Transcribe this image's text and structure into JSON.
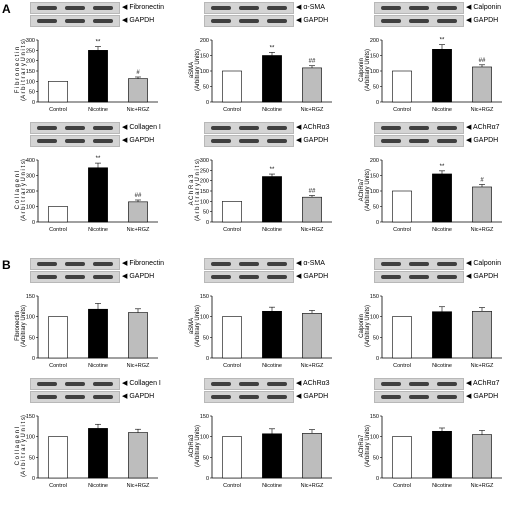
{
  "sections": [
    {
      "label": "A",
      "panels": [
        {
          "blots": [
            "Fibronectin",
            "GAPDH"
          ],
          "ylabel_lines": [
            "F i b r o n e c t i n",
            "(A r b i t r a r y  U n i t s)"
          ],
          "chart_data": {
            "type": "bar",
            "categories": [
              "Control",
              "Nicotine",
              "Nic+RGZ"
            ],
            "values": [
              100,
              250,
              113
            ],
            "errors": [
              0,
              18,
              8
            ],
            "annotations": [
              "",
              "**",
              "#"
            ],
            "ylim": [
              0,
              300
            ],
            "yticks": [
              0,
              50,
              100,
              150,
              200,
              250,
              300
            ]
          }
        },
        {
          "blots": [
            "α-SMA",
            "GAPDH"
          ],
          "ylabel_lines": [
            "aSMA",
            "(Arbitrary Units)"
          ],
          "chart_data": {
            "type": "bar",
            "categories": [
              "Control",
              "Nicotine",
              "Nic+RGZ"
            ],
            "values": [
              100,
              150,
              110
            ],
            "errors": [
              0,
              10,
              7
            ],
            "annotations": [
              "",
              "**",
              "##"
            ],
            "ylim": [
              0,
              200
            ],
            "yticks": [
              0,
              50,
              100,
              150,
              200
            ]
          }
        },
        {
          "blots": [
            "Calponin",
            "GAPDH"
          ],
          "ylabel_lines": [
            "Calponin",
            "(Arbitrary Units)"
          ],
          "chart_data": {
            "type": "bar",
            "categories": [
              "Control",
              "Nicotine",
              "Nic+RGZ"
            ],
            "values": [
              100,
              170,
              113
            ],
            "errors": [
              0,
              15,
              7
            ],
            "annotations": [
              "",
              "**",
              "##"
            ],
            "ylim": [
              0,
              200
            ],
            "yticks": [
              0,
              50,
              100,
              150,
              200
            ]
          }
        },
        {
          "blots": [
            "Collagen I",
            "GAPDH"
          ],
          "ylabel_lines": [
            "C o l l a g e n  I",
            "(A r b i t r a r y  U n i t s)"
          ],
          "chart_data": {
            "type": "bar",
            "categories": [
              "Control",
              "Nicotine",
              "Nic+RGZ"
            ],
            "values": [
              100,
              350,
              130
            ],
            "errors": [
              0,
              30,
              12
            ],
            "annotations": [
              "",
              "**",
              "##"
            ],
            "ylim": [
              0,
              400
            ],
            "yticks": [
              0,
              100,
              200,
              300,
              400
            ]
          }
        },
        {
          "blots": [
            "AChRα3",
            "GAPDH"
          ],
          "ylabel_lines": [
            "A C h R a 3",
            "(A r b i t r a r y  U n i t s)"
          ],
          "chart_data": {
            "type": "bar",
            "categories": [
              "Control",
              "Nicotine",
              "Nic+RGZ"
            ],
            "values": [
              100,
              220,
              120
            ],
            "errors": [
              0,
              12,
              8
            ],
            "annotations": [
              "",
              "**",
              "##"
            ],
            "ylim": [
              0,
              300
            ],
            "yticks": [
              0,
              50,
              100,
              150,
              200,
              250,
              300
            ]
          }
        },
        {
          "blots": [
            "AChRα7",
            "GAPDH"
          ],
          "ylabel_lines": [
            "AChRa7",
            "(Arbitrary Units)"
          ],
          "chart_data": {
            "type": "bar",
            "categories": [
              "Control",
              "Nicotine",
              "Nic+RGZ"
            ],
            "values": [
              100,
              155,
              113
            ],
            "errors": [
              0,
              10,
              8
            ],
            "annotations": [
              "",
              "**",
              "#"
            ],
            "ylim": [
              0,
              200
            ],
            "yticks": [
              0,
              50,
              100,
              150,
              200
            ]
          }
        }
      ]
    },
    {
      "label": "B",
      "panels": [
        {
          "blots": [
            "Fibronectin",
            "GAPDH"
          ],
          "ylabel_lines": [
            "Fibronectin",
            "(Arbitrary Units)"
          ],
          "chart_data": {
            "type": "bar",
            "categories": [
              "Control",
              "Nicotine",
              "Nic+RGZ"
            ],
            "values": [
              100,
              118,
              110
            ],
            "errors": [
              0,
              14,
              9
            ],
            "annotations": [
              "",
              "",
              ""
            ],
            "ylim": [
              0,
              150
            ],
            "yticks": [
              0,
              50,
              100,
              150
            ]
          }
        },
        {
          "blots": [
            "α-SMA",
            "GAPDH"
          ],
          "ylabel_lines": [
            "aSMA",
            "(Arbitrary Units)"
          ],
          "chart_data": {
            "type": "bar",
            "categories": [
              "Control",
              "Nicotine",
              "Nic+RGZ"
            ],
            "values": [
              100,
              113,
              108
            ],
            "errors": [
              0,
              10,
              7
            ],
            "annotations": [
              "",
              "",
              ""
            ],
            "ylim": [
              0,
              150
            ],
            "yticks": [
              0,
              50,
              100,
              150
            ]
          }
        },
        {
          "blots": [
            "Calponin",
            "GAPDH"
          ],
          "ylabel_lines": [
            "Calponin",
            "(Arbitrary Units)"
          ],
          "chart_data": {
            "type": "bar",
            "categories": [
              "Control",
              "Nicotine",
              "Nic+RGZ"
            ],
            "values": [
              100,
              112,
              113
            ],
            "errors": [
              0,
              12,
              9
            ],
            "annotations": [
              "",
              "",
              ""
            ],
            "ylim": [
              0,
              150
            ],
            "yticks": [
              0,
              50,
              100,
              150
            ]
          }
        },
        {
          "blots": [
            "Collagen I",
            "GAPDH"
          ],
          "ylabel_lines": [
            "C o l l a g e n  I",
            "(A r b i t r a r y  U n i t s)"
          ],
          "chart_data": {
            "type": "bar",
            "categories": [
              "Control",
              "Nicotine",
              "Nic+RGZ"
            ],
            "values": [
              100,
              120,
              110
            ],
            "errors": [
              0,
              10,
              8
            ],
            "annotations": [
              "",
              "",
              ""
            ],
            "ylim": [
              0,
              150
            ],
            "yticks": [
              0,
              50,
              100,
              150
            ]
          }
        },
        {
          "blots": [
            "AChRα3",
            "GAPDH"
          ],
          "ylabel_lines": [
            "AChRa3",
            "(Arbitrary Units)"
          ],
          "chart_data": {
            "type": "bar",
            "categories": [
              "Control",
              "Nicotine",
              "Nic+RGZ"
            ],
            "values": [
              100,
              107,
              108
            ],
            "errors": [
              0,
              12,
              9
            ],
            "annotations": [
              "",
              "",
              ""
            ],
            "ylim": [
              0,
              150
            ],
            "yticks": [
              0,
              50,
              100,
              150
            ]
          }
        },
        {
          "blots": [
            "AChRα7",
            "GAPDH"
          ],
          "ylabel_lines": [
            "AChRa7",
            "(Arbitrary Units)"
          ],
          "chart_data": {
            "type": "bar",
            "categories": [
              "Control",
              "Nicotine",
              "Nic+RGZ"
            ],
            "values": [
              100,
              113,
              105
            ],
            "errors": [
              0,
              8,
              10
            ],
            "annotations": [
              "",
              "",
              ""
            ],
            "ylim": [
              0,
              150
            ],
            "yticks": [
              0,
              50,
              100,
              150
            ]
          }
        }
      ]
    }
  ],
  "colors": {
    "Control": "#ffffff",
    "Nicotine": "#000000",
    "Nic+RGZ": "#bdbdbd"
  }
}
